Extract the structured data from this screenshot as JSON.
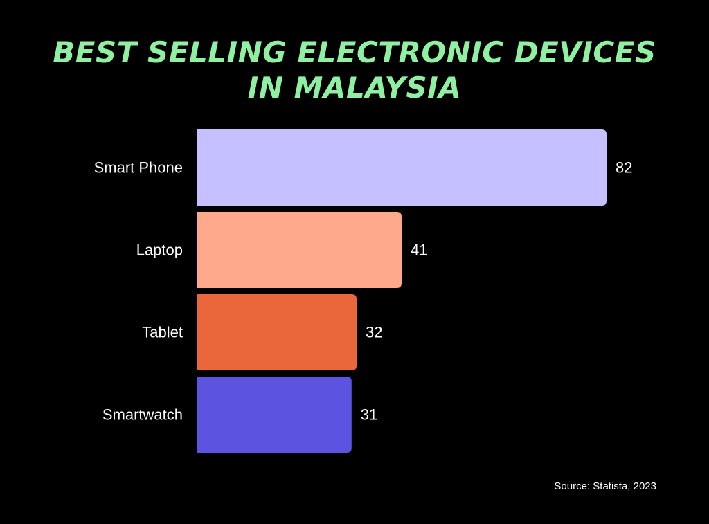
{
  "title": {
    "line1": "BEST SELLING ELECTRONIC DEVICES",
    "line2": "IN MALAYSIA"
  },
  "chart_data": {
    "type": "bar",
    "orientation": "horizontal",
    "categories": [
      "Smart Phone",
      "Laptop",
      "Tablet",
      "Smartwatch"
    ],
    "values": [
      82,
      41,
      32,
      31
    ],
    "colors": [
      "#c5c0ff",
      "#ffa98c",
      "#e9673b",
      "#5c53e0"
    ],
    "xlim": [
      0,
      82
    ],
    "grid": false,
    "legend": false
  },
  "source": "Source: Statista, 2023",
  "colors": {
    "background": "#000000",
    "title": "#8ef0a0",
    "text": "#ffffff"
  }
}
